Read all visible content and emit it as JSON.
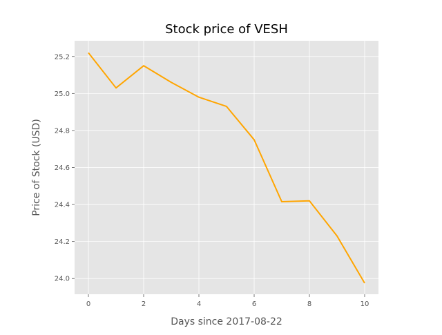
{
  "chart_data": {
    "type": "line",
    "title": "Stock price of VESH",
    "xlabel": "Days since 2017-08-22",
    "ylabel": "Price of Stock (USD)",
    "x": [
      0,
      1,
      2,
      3,
      4,
      5,
      6,
      7,
      8,
      9,
      10
    ],
    "series": [
      {
        "values": [
          25.22,
          25.03,
          25.15,
          25.06,
          24.98,
          24.93,
          24.75,
          24.415,
          24.42,
          24.23,
          23.975
        ]
      }
    ],
    "xlim": [
      -0.5,
      10.5
    ],
    "ylim": [
      23.915,
      25.285
    ],
    "x_ticks": [
      "0",
      "2",
      "4",
      "6",
      "8",
      "10"
    ],
    "y_ticks": [
      "24.0",
      "24.2",
      "24.4",
      "24.6",
      "24.8",
      "25.0",
      "25.2"
    ],
    "grid": true,
    "line_color": "#FFA500",
    "plot_background": "#E5E5E5",
    "style": "ggplot"
  }
}
